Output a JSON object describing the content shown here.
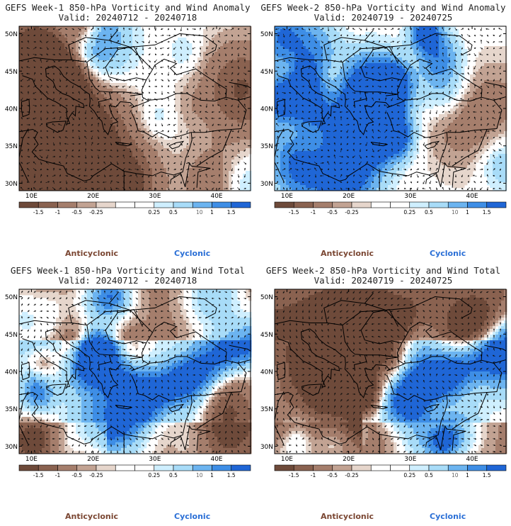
{
  "panels": [
    {
      "line1": "GEFS Week-1 850-hPa Vorticity and Wind Anomaly",
      "line2": "Valid: 20240712 - 20240718",
      "seed": 11,
      "bias": -0.1,
      "mode": "anomaly"
    },
    {
      "line1": "GEFS Week-2 850-hPa Vorticity and Wind Anomaly",
      "line2": "Valid: 20240719 - 20240725",
      "seed": 23,
      "bias": 0.15,
      "mode": "anomaly"
    },
    {
      "line1": "GEFS Week-1 850-hPa Vorticity and Wind Total",
      "line2": "Valid: 20240712 - 20240718",
      "seed": 37,
      "bias": 0.0,
      "mode": "total"
    },
    {
      "line1": "GEFS Week-2 850-hPa Vorticity and Wind Total",
      "line2": "Valid: 20240719 - 20240725",
      "seed": 53,
      "bias": 0.0,
      "mode": "total"
    }
  ],
  "lat_labels": [
    "50N",
    "45N",
    "40N",
    "35N",
    "30N"
  ],
  "lon_labels": [
    "10E",
    "20E",
    "30E",
    "40E"
  ],
  "colorbar": {
    "labels": [
      "-1.5",
      "-1",
      "-0.5",
      "-0.25",
      "0.25",
      "0.5",
      "1",
      "1.5"
    ],
    "colors": [
      "#6e4a3a",
      "#8a6250",
      "#a57e6c",
      "#c2a393",
      "#e6d6cc",
      "#ffffff",
      "#ffffff",
      "#cfefff",
      "#a8dcf8",
      "#6cb4f0",
      "#3e8ee6",
      "#1f66d6"
    ],
    "scale_text": "10"
  },
  "legend": {
    "anticyclonic": "Anticyclonic",
    "cyclonic": "Cyclonic"
  }
}
